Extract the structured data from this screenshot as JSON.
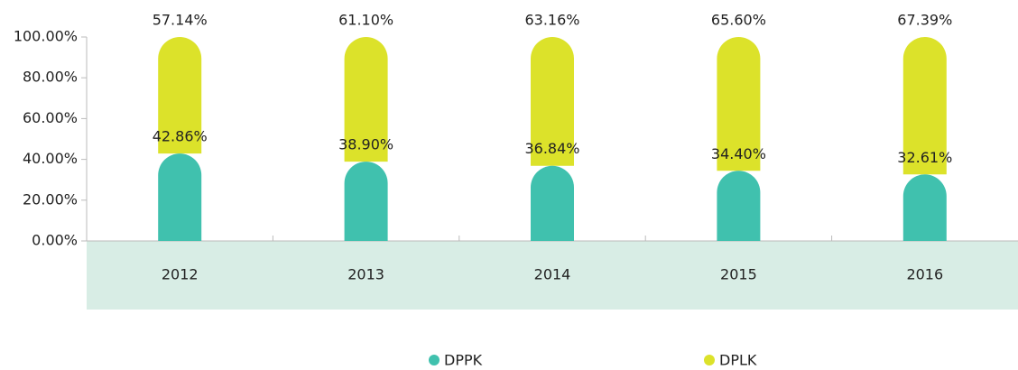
{
  "chart_data": {
    "type": "stacked_bar",
    "categories": [
      "2012",
      "2013",
      "2014",
      "2015",
      "2016"
    ],
    "series": [
      {
        "name": "DPPK",
        "color": "#40c1ae",
        "values": [
          42.86,
          38.9,
          36.84,
          34.4,
          32.61
        ],
        "value_labels": [
          "42.86%",
          "38.90%",
          "36.84%",
          "34.40%",
          "32.61%"
        ]
      },
      {
        "name": "DPLK",
        "color": "#dce22a",
        "values": [
          57.14,
          61.1,
          63.16,
          65.6,
          67.39
        ],
        "value_labels": [
          "57.14%",
          "61.10%",
          "63.16%",
          "65.60%",
          "67.39%"
        ]
      }
    ],
    "ylim": [
      0,
      100
    ],
    "yticks": [
      {
        "value": 0,
        "label": "0.00%"
      },
      {
        "value": 20,
        "label": "20.00%"
      },
      {
        "value": 40,
        "label": "40.00%"
      },
      {
        "value": 60,
        "label": "60.00%"
      },
      {
        "value": 80,
        "label": "80.00%"
      },
      {
        "value": 100,
        "label": "100.00%"
      }
    ],
    "legend": "bottom"
  }
}
